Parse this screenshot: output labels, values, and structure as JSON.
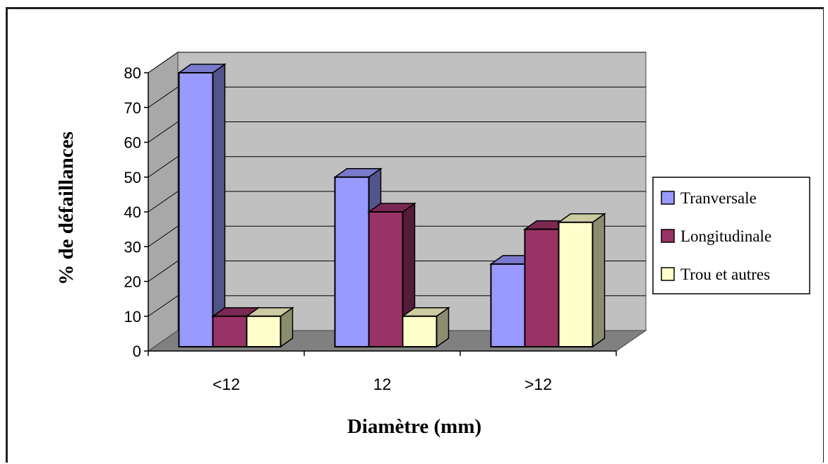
{
  "chart_data": {
    "type": "bar",
    "style": "3d-clustered-column",
    "categories": [
      "<12",
      "12",
      ">12"
    ],
    "series": [
      {
        "name": "Tranversale",
        "values": [
          80,
          50,
          25
        ],
        "color": "#9999ff"
      },
      {
        "name": "Longitudinale",
        "values": [
          10,
          40,
          35
        ],
        "color": "#993366"
      },
      {
        "name": "Trou et autres",
        "values": [
          10,
          10,
          37
        ],
        "color": "#ffffcc"
      }
    ],
    "title": "",
    "xlabel": "Diamètre (mm)",
    "ylabel": "% de défaillances",
    "ylim": [
      0,
      80
    ],
    "yticks": [
      0,
      10,
      20,
      30,
      40,
      50,
      60,
      70,
      80
    ],
    "grid": true,
    "legend": "right",
    "wall_color": "#c0c0c0",
    "floor_color": "#808080"
  }
}
